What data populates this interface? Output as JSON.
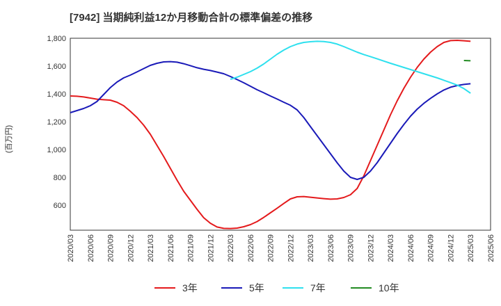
{
  "chart_data": {
    "type": "line",
    "title": "[7942]  当期純利益12か月移動合計の標準偏差の推移",
    "ylabel": "(百万円)",
    "xlabel": "",
    "ylim": [
      420,
      1800
    ],
    "yticks": [
      600,
      800,
      1000,
      1200,
      1400,
      1600,
      1800
    ],
    "ytick_labels": [
      "600",
      "800",
      "1,000",
      "1,200",
      "1,400",
      "1,600",
      "1,800"
    ],
    "xticks": [
      "2020/03",
      "2020/06",
      "2020/09",
      "2020/12",
      "2021/03",
      "2021/06",
      "2021/09",
      "2021/12",
      "2022/03",
      "2022/06",
      "2022/09",
      "2022/12",
      "2023/03",
      "2023/06",
      "2023/09",
      "2023/12",
      "2024/03",
      "2024/06",
      "2024/09",
      "2024/12",
      "2025/03",
      "2025/06"
    ],
    "grid": true,
    "legend_position": "bottom",
    "series": [
      {
        "name": "3年",
        "color": "#e41a1c",
        "x": [
          "2020/03",
          "2020/04",
          "2020/05",
          "2020/06",
          "2020/07",
          "2020/08",
          "2020/09",
          "2020/10",
          "2020/11",
          "2020/12",
          "2021/01",
          "2021/02",
          "2021/03",
          "2021/04",
          "2021/05",
          "2021/06",
          "2021/07",
          "2021/08",
          "2021/09",
          "2021/10",
          "2021/11",
          "2021/12",
          "2022/01",
          "2022/02",
          "2022/03",
          "2022/04",
          "2022/05",
          "2022/06",
          "2022/07",
          "2022/08",
          "2022/09",
          "2022/10",
          "2022/11",
          "2022/12",
          "2023/01",
          "2023/02",
          "2023/03",
          "2023/04",
          "2023/05",
          "2023/06",
          "2023/07",
          "2023/08",
          "2023/09",
          "2023/10",
          "2023/11",
          "2023/12",
          "2024/01",
          "2024/02",
          "2024/03",
          "2024/04",
          "2024/05",
          "2024/06",
          "2024/07",
          "2024/08",
          "2024/09",
          "2024/10",
          "2024/11",
          "2024/12",
          "2025/01",
          "2025/02",
          "2025/03"
        ],
        "values": [
          1385,
          1383,
          1378,
          1370,
          1362,
          1358,
          1355,
          1340,
          1315,
          1275,
          1230,
          1175,
          1110,
          1030,
          950,
          865,
          780,
          700,
          635,
          570,
          510,
          470,
          443,
          433,
          432,
          435,
          445,
          460,
          482,
          512,
          545,
          578,
          612,
          645,
          660,
          662,
          657,
          652,
          647,
          643,
          645,
          655,
          675,
          720,
          810,
          920,
          1030,
          1140,
          1250,
          1350,
          1440,
          1520,
          1590,
          1650,
          1700,
          1740,
          1770,
          1783,
          1785,
          1782,
          1778
        ]
      },
      {
        "name": "5年",
        "color": "#1a1ab8",
        "x": [
          "2020/03",
          "2020/04",
          "2020/05",
          "2020/06",
          "2020/07",
          "2020/08",
          "2020/09",
          "2020/10",
          "2020/11",
          "2020/12",
          "2021/01",
          "2021/02",
          "2021/03",
          "2021/04",
          "2021/05",
          "2021/06",
          "2021/07",
          "2021/08",
          "2021/09",
          "2021/10",
          "2021/11",
          "2021/12",
          "2022/01",
          "2022/02",
          "2022/03",
          "2022/04",
          "2022/05",
          "2022/06",
          "2022/07",
          "2022/08",
          "2022/09",
          "2022/10",
          "2022/11",
          "2022/12",
          "2023/01",
          "2023/02",
          "2023/03",
          "2023/04",
          "2023/05",
          "2023/06",
          "2023/07",
          "2023/08",
          "2023/09",
          "2023/10",
          "2023/11",
          "2023/12",
          "2024/01",
          "2024/02",
          "2024/03",
          "2024/04",
          "2024/05",
          "2024/06",
          "2024/07",
          "2024/08",
          "2024/09",
          "2024/10",
          "2024/11",
          "2024/12",
          "2025/01",
          "2025/02",
          "2025/03"
        ],
        "values": [
          1265,
          1280,
          1295,
          1315,
          1345,
          1395,
          1445,
          1485,
          1515,
          1535,
          1558,
          1582,
          1605,
          1620,
          1630,
          1632,
          1628,
          1617,
          1603,
          1588,
          1577,
          1568,
          1557,
          1545,
          1525,
          1503,
          1480,
          1455,
          1430,
          1408,
          1385,
          1363,
          1340,
          1318,
          1285,
          1230,
          1165,
          1100,
          1035,
          970,
          905,
          845,
          800,
          785,
          800,
          845,
          905,
          975,
          1045,
          1115,
          1180,
          1240,
          1290,
          1332,
          1368,
          1400,
          1428,
          1448,
          1460,
          1468,
          1473
        ]
      },
      {
        "name": "7年",
        "color": "#2ee0ee",
        "x": [
          "2022/03",
          "2022/04",
          "2022/05",
          "2022/06",
          "2022/07",
          "2022/08",
          "2022/09",
          "2022/10",
          "2022/11",
          "2022/12",
          "2023/01",
          "2023/02",
          "2023/03",
          "2023/04",
          "2023/05",
          "2023/06",
          "2023/07",
          "2023/08",
          "2023/09",
          "2023/10",
          "2023/11",
          "2023/12",
          "2024/01",
          "2024/02",
          "2024/03",
          "2024/04",
          "2024/05",
          "2024/06",
          "2024/07",
          "2024/08",
          "2024/09",
          "2024/10",
          "2024/11",
          "2024/12",
          "2025/01",
          "2025/02",
          "2025/03"
        ],
        "values": [
          1505,
          1520,
          1540,
          1560,
          1585,
          1615,
          1650,
          1685,
          1715,
          1740,
          1758,
          1770,
          1775,
          1778,
          1776,
          1770,
          1758,
          1740,
          1720,
          1700,
          1683,
          1668,
          1652,
          1636,
          1620,
          1605,
          1590,
          1575,
          1560,
          1545,
          1530,
          1515,
          1498,
          1481,
          1463,
          1438,
          1405
        ]
      },
      {
        "name": "10年",
        "color": "#228b22",
        "x": [
          "2025/02",
          "2025/03"
        ],
        "values": [
          1640,
          1638
        ]
      }
    ]
  }
}
